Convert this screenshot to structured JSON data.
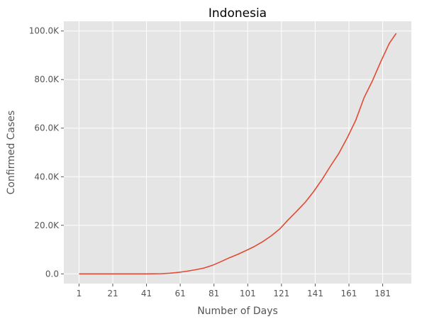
{
  "chart_data": {
    "type": "line",
    "title": "Indonesia",
    "xlabel": "Number of Days",
    "ylabel": "Confirmed Cases",
    "xlim": [
      -8,
      198
    ],
    "ylim": [
      -4000,
      104000
    ],
    "grid": true,
    "x_ticks": [
      1,
      21,
      41,
      61,
      81,
      101,
      121,
      141,
      161,
      181
    ],
    "x_tick_labels": [
      "1",
      "21",
      "41",
      "61",
      "81",
      "101",
      "121",
      "141",
      "161",
      "181"
    ],
    "y_ticks": [
      0,
      20000,
      40000,
      60000,
      80000,
      100000
    ],
    "y_tick_labels": [
      "0.0",
      "20.0K",
      "40.0K",
      "60.0K",
      "80.0K",
      "100.0K"
    ],
    "colors": {
      "background": "#e5e5e5",
      "grid": "#ffffff",
      "line": "#e24a33"
    },
    "series": [
      {
        "x": [
          1,
          21,
          41,
          50,
          55,
          60,
          65,
          70,
          75,
          80,
          85,
          90,
          95,
          100,
          105,
          110,
          115,
          120,
          125,
          130,
          135,
          140,
          145,
          150,
          155,
          160,
          165,
          170,
          175,
          180,
          185,
          189
        ],
        "y": [
          0,
          0,
          0,
          100,
          300,
          600,
          1100,
          1700,
          2400,
          3500,
          5000,
          6600,
          8000,
          9600,
          11300,
          13300,
          15700,
          18500,
          22300,
          25800,
          29400,
          33800,
          38800,
          44300,
          49600,
          56000,
          63200,
          72600,
          79600,
          87600,
          95000,
          99000
        ]
      }
    ]
  }
}
